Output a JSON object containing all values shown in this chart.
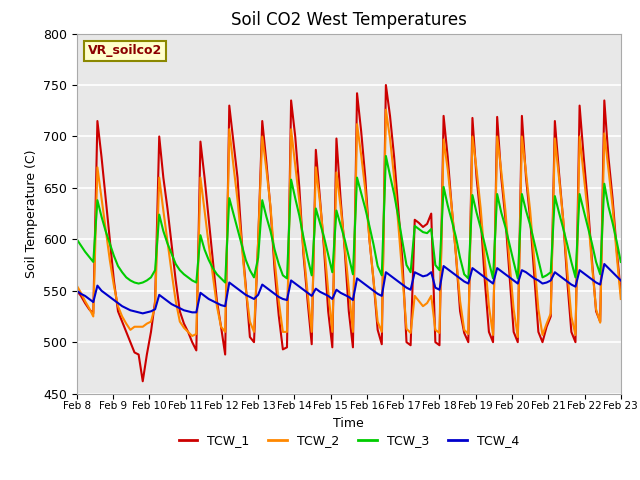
{
  "title": "Soil CO2 West Temperatures",
  "xlabel": "Time",
  "ylabel": "Soil Temperature (C)",
  "ylim": [
    450,
    800
  ],
  "annotation": "VR_soilco2",
  "plot_bg_color": "#e8e8e8",
  "fig_bg_color": "#ffffff",
  "legend": [
    "TCW_1",
    "TCW_2",
    "TCW_3",
    "TCW_4"
  ],
  "line_colors": [
    "#cc0000",
    "#ff8800",
    "#00cc00",
    "#0000cc"
  ],
  "x_tick_labels": [
    "Feb 8",
    "Feb 9",
    "Feb 10",
    "Feb 11",
    "Feb 12",
    "Feb 13",
    "Feb 14",
    "Feb 15",
    "Feb 16",
    "Feb 17",
    "Feb 18",
    "Feb 19",
    "Feb 20",
    "Feb 21",
    "Feb 22",
    "Feb 23"
  ],
  "TCW_1": [
    550,
    545,
    538,
    532,
    528,
    715,
    680,
    640,
    600,
    560,
    530,
    520,
    510,
    500,
    490,
    488,
    462,
    488,
    510,
    540,
    700,
    660,
    630,
    595,
    560,
    530,
    518,
    510,
    500,
    492,
    695,
    660,
    620,
    580,
    540,
    515,
    488,
    730,
    695,
    660,
    600,
    555,
    505,
    500,
    598,
    715,
    675,
    630,
    570,
    526,
    493,
    495,
    735,
    700,
    650,
    585,
    540,
    498,
    687,
    640,
    590,
    530,
    495,
    698,
    640,
    590,
    530,
    495,
    742,
    705,
    660,
    600,
    560,
    512,
    498,
    750,
    720,
    680,
    630,
    580,
    500,
    497,
    619,
    616,
    612,
    615,
    625,
    500,
    497,
    720,
    680,
    630,
    585,
    530,
    509,
    500,
    718,
    660,
    620,
    560,
    510,
    500,
    719,
    660,
    620,
    565,
    510,
    500,
    720,
    660,
    620,
    565,
    510,
    500,
    515,
    525,
    715,
    665,
    620,
    560,
    510,
    500,
    730,
    680,
    635,
    580,
    530,
    520,
    735,
    680,
    640,
    590,
    548
  ],
  "TCW_2": [
    555,
    548,
    540,
    533,
    525,
    670,
    640,
    610,
    580,
    555,
    535,
    525,
    518,
    512,
    515,
    515,
    515,
    518,
    520,
    535,
    660,
    628,
    598,
    568,
    540,
    520,
    514,
    510,
    506,
    508,
    660,
    628,
    595,
    565,
    535,
    515,
    510,
    707,
    672,
    638,
    596,
    552,
    520,
    510,
    598,
    700,
    668,
    632,
    580,
    540,
    510,
    510,
    707,
    672,
    637,
    590,
    548,
    510,
    670,
    636,
    596,
    550,
    510,
    665,
    632,
    594,
    552,
    510,
    712,
    682,
    648,
    600,
    560,
    520,
    510,
    726,
    698,
    660,
    615,
    565,
    513,
    509,
    545,
    540,
    535,
    538,
    545,
    512,
    509,
    697,
    668,
    630,
    585,
    540,
    512,
    508,
    700,
    668,
    630,
    580,
    535,
    507,
    700,
    666,
    628,
    578,
    532,
    505,
    700,
    665,
    628,
    580,
    532,
    507,
    518,
    528,
    698,
    660,
    620,
    570,
    525,
    507,
    700,
    663,
    625,
    575,
    532,
    519,
    703,
    668,
    632,
    585,
    542
  ],
  "TCW_3": [
    600,
    594,
    588,
    583,
    578,
    638,
    622,
    608,
    596,
    584,
    574,
    568,
    563,
    560,
    558,
    557,
    558,
    560,
    563,
    570,
    624,
    608,
    596,
    586,
    576,
    570,
    566,
    563,
    560,
    558,
    604,
    590,
    580,
    572,
    566,
    562,
    558,
    640,
    625,
    610,
    595,
    580,
    570,
    563,
    582,
    638,
    622,
    608,
    590,
    576,
    565,
    562,
    658,
    640,
    623,
    602,
    582,
    565,
    630,
    616,
    602,
    585,
    568,
    628,
    614,
    600,
    583,
    566,
    660,
    645,
    630,
    613,
    595,
    574,
    565,
    681,
    662,
    644,
    622,
    598,
    575,
    568,
    613,
    610,
    607,
    606,
    610,
    575,
    570,
    651,
    633,
    618,
    602,
    582,
    566,
    562,
    643,
    626,
    611,
    595,
    578,
    562,
    644,
    626,
    612,
    595,
    578,
    562,
    644,
    628,
    614,
    597,
    580,
    563,
    565,
    568,
    642,
    626,
    611,
    595,
    578,
    563,
    644,
    628,
    612,
    596,
    578,
    566,
    654,
    632,
    616,
    598,
    578
  ],
  "TCW_4": [
    550,
    547,
    545,
    542,
    539,
    555,
    550,
    547,
    544,
    541,
    538,
    535,
    533,
    531,
    530,
    529,
    528,
    529,
    530,
    532,
    546,
    543,
    540,
    537,
    535,
    533,
    531,
    530,
    529,
    529,
    548,
    545,
    542,
    540,
    538,
    536,
    535,
    558,
    555,
    552,
    549,
    546,
    544,
    542,
    546,
    556,
    553,
    550,
    547,
    544,
    542,
    541,
    560,
    557,
    554,
    551,
    548,
    545,
    552,
    549,
    547,
    545,
    542,
    551,
    548,
    546,
    544,
    541,
    562,
    559,
    556,
    553,
    550,
    547,
    545,
    568,
    565,
    562,
    559,
    556,
    553,
    551,
    568,
    566,
    564,
    565,
    568,
    553,
    551,
    574,
    571,
    568,
    565,
    562,
    559,
    557,
    572,
    569,
    566,
    563,
    560,
    557,
    572,
    569,
    566,
    563,
    560,
    557,
    570,
    568,
    565,
    562,
    560,
    557,
    558,
    560,
    568,
    565,
    562,
    559,
    556,
    554,
    570,
    567,
    564,
    561,
    558,
    556,
    576,
    572,
    568,
    564,
    560
  ]
}
